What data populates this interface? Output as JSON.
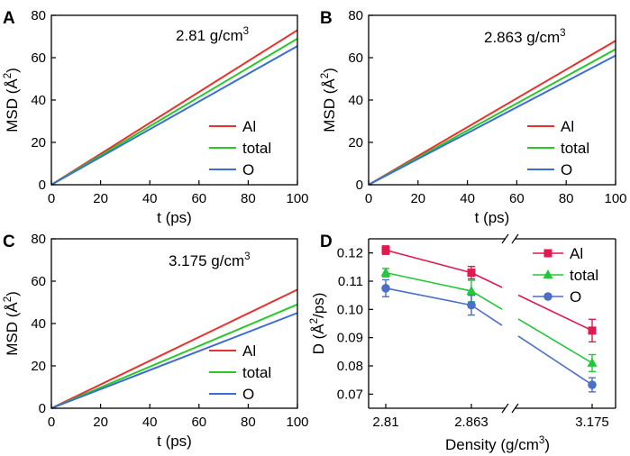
{
  "figure": {
    "panels": [
      {
        "letter": "A",
        "annotation": "2.81 g/cm",
        "annotation_sup": "3"
      },
      {
        "letter": "B",
        "annotation": "2.863 g/cm",
        "annotation_sup": "3"
      },
      {
        "letter": "C",
        "annotation": "3.175 g/cm",
        "annotation_sup": "3"
      },
      {
        "letter": "D"
      }
    ]
  },
  "chart_data": [
    {
      "panel": "A",
      "type": "line",
      "title": "2.81 g/cm3",
      "xlabel": "t (ps)",
      "ylabel": "MSD (Å2)",
      "xlim": [
        0,
        100
      ],
      "ylim": [
        0,
        80
      ],
      "xticks": [
        0,
        20,
        40,
        60,
        80,
        100
      ],
      "yticks": [
        0,
        20,
        40,
        60,
        80
      ],
      "legend": "bottom-right",
      "series": [
        {
          "name": "Al",
          "color": "#e8322d",
          "x": [
            0,
            100
          ],
          "y": [
            0,
            73
          ]
        },
        {
          "name": "total",
          "color": "#28c828",
          "x": [
            0,
            100
          ],
          "y": [
            0,
            69
          ]
        },
        {
          "name": "O",
          "color": "#3c6ed2",
          "x": [
            0,
            100
          ],
          "y": [
            0,
            65.5
          ]
        }
      ]
    },
    {
      "panel": "B",
      "type": "line",
      "title": "2.863 g/cm3",
      "xlabel": "t (ps)",
      "ylabel": "MSD (Å2)",
      "xlim": [
        0,
        100
      ],
      "ylim": [
        0,
        80
      ],
      "xticks": [
        0,
        20,
        40,
        60,
        80,
        100
      ],
      "yticks": [
        0,
        20,
        40,
        60,
        80
      ],
      "legend": "bottom-right",
      "series": [
        {
          "name": "Al",
          "color": "#e8322d",
          "x": [
            0,
            100
          ],
          "y": [
            0,
            68
          ]
        },
        {
          "name": "total",
          "color": "#28c828",
          "x": [
            0,
            100
          ],
          "y": [
            0,
            64
          ]
        },
        {
          "name": "O",
          "color": "#3c6ed2",
          "x": [
            0,
            100
          ],
          "y": [
            0,
            61
          ]
        }
      ]
    },
    {
      "panel": "C",
      "type": "line",
      "title": "3.175 g/cm3",
      "xlabel": "t (ps)",
      "ylabel": "MSD (Å2)",
      "xlim": [
        0,
        100
      ],
      "ylim": [
        0,
        80
      ],
      "xticks": [
        0,
        20,
        40,
        60,
        80,
        100
      ],
      "yticks": [
        0,
        20,
        40,
        60,
        80
      ],
      "legend": "bottom-right",
      "series": [
        {
          "name": "Al",
          "color": "#e8322d",
          "x": [
            0,
            100
          ],
          "y": [
            0,
            56
          ]
        },
        {
          "name": "total",
          "color": "#28c828",
          "x": [
            0,
            100
          ],
          "y": [
            0,
            49
          ]
        },
        {
          "name": "O",
          "color": "#3c6ed2",
          "x": [
            0,
            100
          ],
          "y": [
            0,
            45
          ]
        }
      ]
    },
    {
      "panel": "D",
      "type": "line",
      "xlabel": "Density (g/cm3)",
      "ylabel": "D (Å2/ps)",
      "categories": [
        "2.81",
        "2.863",
        "3.175"
      ],
      "ylim": [
        0.065,
        0.125
      ],
      "yticks": [
        0.07,
        0.08,
        0.09,
        0.1,
        0.11,
        0.12
      ],
      "ytick_labels": [
        "0.07",
        "0.08",
        "0.09",
        "0.10",
        "0.11",
        "0.12"
      ],
      "x_axis_break": "between 2.863 and 3.175",
      "legend": "top-right",
      "series": [
        {
          "name": "Al",
          "color": "#e0194f",
          "marker": "square",
          "values": [
            0.121,
            0.113,
            0.0925
          ],
          "errors": [
            0.0015,
            0.0022,
            0.004
          ]
        },
        {
          "name": "total",
          "color": "#22c83a",
          "marker": "triangle",
          "values": [
            0.113,
            0.1065,
            0.081
          ],
          "errors": [
            0.0015,
            0.0038,
            0.003
          ]
        },
        {
          "name": "O",
          "color": "#4a6fc8",
          "marker": "circle",
          "values": [
            0.1075,
            0.1015,
            0.0733
          ],
          "errors": [
            0.003,
            0.0035,
            0.0025
          ]
        }
      ]
    }
  ]
}
